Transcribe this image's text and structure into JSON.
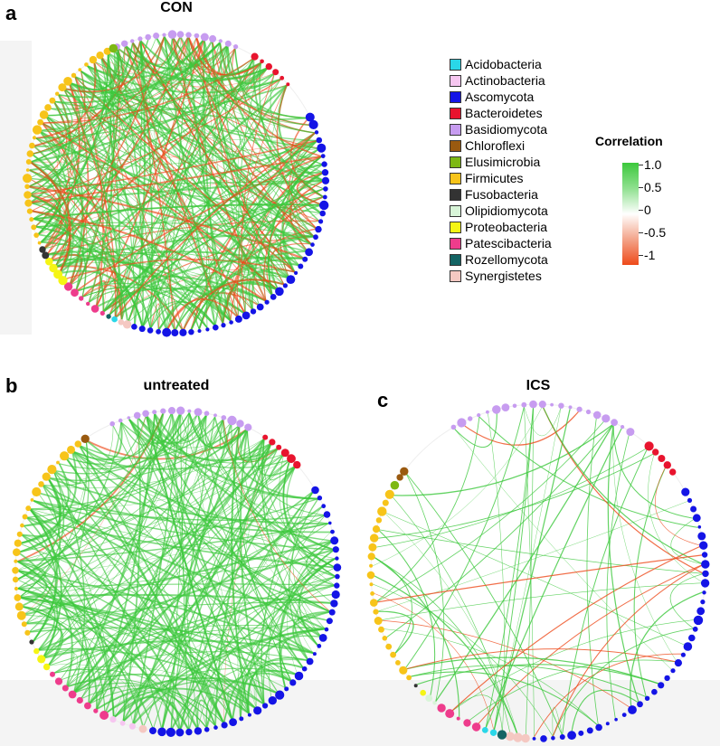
{
  "panels": [
    {
      "id": "a",
      "letter": "a",
      "title": "CON",
      "cx": 195,
      "cy": 203,
      "r": 165,
      "density": "high",
      "phyla": [
        {
          "name": "Basidiomycota",
          "from": -115,
          "to": -65
        },
        {
          "name": "Bacteroidetes",
          "from": -60,
          "to": -40
        },
        {
          "name": "Ascomycota",
          "from": -28,
          "to": 108
        },
        {
          "name": "Synergistetes",
          "from": 108,
          "to": 113
        },
        {
          "name": "Acidobacteria",
          "from": 113,
          "to": 116
        },
        {
          "name": "Rozellomycota",
          "from": 116,
          "to": 118
        },
        {
          "name": "Patescibacteria",
          "from": 118,
          "to": 138
        },
        {
          "name": "Proteobacteria",
          "from": 138,
          "to": 150
        },
        {
          "name": "Fusobacteria",
          "from": 150,
          "to": 155
        },
        {
          "name": "Firmicutes",
          "from": 155,
          "to": 244
        },
        {
          "name": "Elusimicrobia",
          "from": 244,
          "to": 246
        }
      ]
    },
    {
      "id": "b",
      "letter": "b",
      "title": "untreated",
      "cx": 195,
      "cy": 632,
      "r": 178,
      "density": "medium",
      "phyla": [
        {
          "name": "Basidiomycota",
          "from": -115,
          "to": -62
        },
        {
          "name": "Bacteroidetes",
          "from": -58,
          "to": -40
        },
        {
          "name": "Ascomycota",
          "from": -32,
          "to": 100
        },
        {
          "name": "Synergistetes",
          "from": 100,
          "to": 104
        },
        {
          "name": "Actinobacteria",
          "from": 104,
          "to": 115
        },
        {
          "name": "Patescibacteria",
          "from": 115,
          "to": 142
        },
        {
          "name": "Proteobacteria",
          "from": 142,
          "to": 152
        },
        {
          "name": "Fusobacteria",
          "from": 152,
          "to": 156
        },
        {
          "name": "Firmicutes",
          "from": 156,
          "to": 234
        },
        {
          "name": "Chloroflexi",
          "from": 234,
          "to": 237
        }
      ]
    },
    {
      "id": "c",
      "letter": "c",
      "title": "ICS",
      "cx": 595,
      "cy": 632,
      "r": 185,
      "density": "low",
      "phyla": [
        {
          "name": "Basidiomycota",
          "from": -122,
          "to": -55
        },
        {
          "name": "Bacteroidetes",
          "from": -50,
          "to": -35
        },
        {
          "name": "Ascomycota",
          "from": -30,
          "to": 93
        },
        {
          "name": "Synergistetes",
          "from": 93,
          "to": 101
        },
        {
          "name": "Rozellomycota",
          "from": 101,
          "to": 104
        },
        {
          "name": "Acidobacteria",
          "from": 104,
          "to": 110
        },
        {
          "name": "Patescibacteria",
          "from": 110,
          "to": 127
        },
        {
          "name": "Olipidiomycota",
          "from": 127,
          "to": 132
        },
        {
          "name": "Proteobacteria",
          "from": 132,
          "to": 135
        },
        {
          "name": "Fusobacteria",
          "from": 135,
          "to": 139
        },
        {
          "name": "Firmicutes",
          "from": 139,
          "to": 209
        },
        {
          "name": "Elusimicrobia",
          "from": 209,
          "to": 213
        },
        {
          "name": "Chloroflexi",
          "from": 213,
          "to": 218
        }
      ]
    }
  ],
  "legend": {
    "items": [
      {
        "label": "Acidobacteria",
        "color": "#2ad7e8"
      },
      {
        "label": "Actinobacteria",
        "color": "#f6c6f0"
      },
      {
        "label": "Ascomycota",
        "color": "#1414e6"
      },
      {
        "label": "Bacteroidetes",
        "color": "#e8142e"
      },
      {
        "label": "Basidiomycota",
        "color": "#c79cf0"
      },
      {
        "label": "Chloroflexi",
        "color": "#9a5a10"
      },
      {
        "label": "Elusimicrobia",
        "color": "#7db814"
      },
      {
        "label": "Firmicutes",
        "color": "#f7c41a"
      },
      {
        "label": "Fusobacteria",
        "color": "#333333"
      },
      {
        "label": "Olipidiomycota",
        "color": "#d8f5d8"
      },
      {
        "label": "Proteobacteria",
        "color": "#f5f514"
      },
      {
        "label": "Patescibacteria",
        "color": "#ee3c8c"
      },
      {
        "label": "Rozellomycota",
        "color": "#146464"
      },
      {
        "label": "Synergistetes",
        "color": "#f5c8c2"
      }
    ]
  },
  "correlation": {
    "title": "Correlation",
    "ticks": [
      "1.0",
      "0.5",
      "0",
      "-0.5",
      "-1"
    ],
    "colors": {
      "positive": "#3cc83c",
      "negative": "#ee4a1a"
    }
  }
}
